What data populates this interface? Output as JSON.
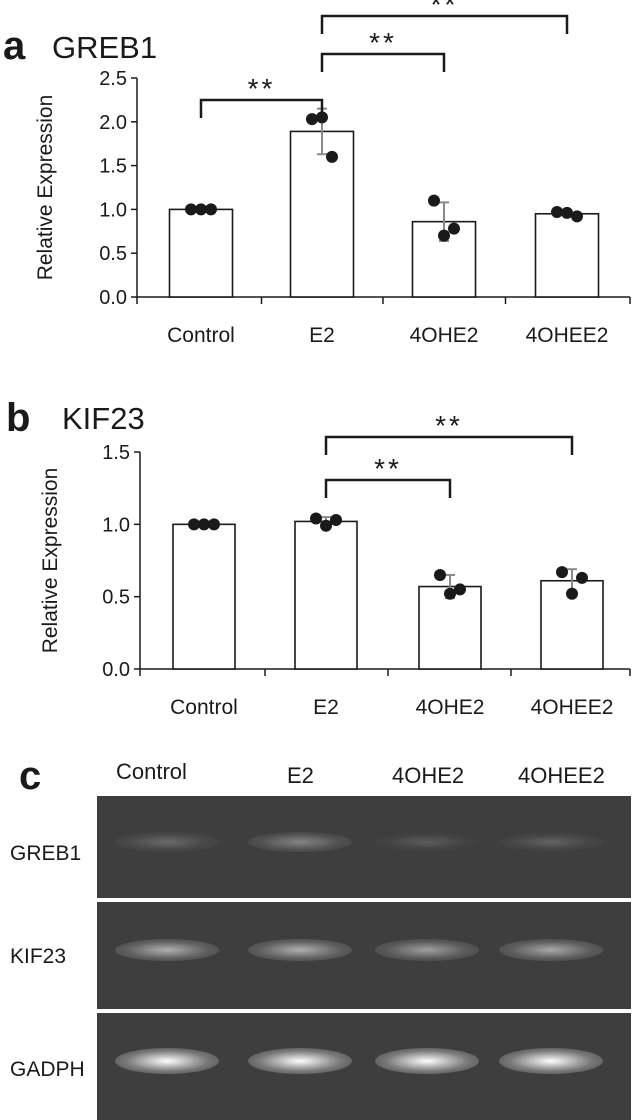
{
  "panels": [
    {
      "letter": "a",
      "title": "GREB1"
    },
    {
      "letter": "b",
      "title": "KIF23"
    },
    {
      "letter": "c"
    }
  ],
  "chart_data": [
    {
      "type": "bar",
      "title": "GREB1",
      "ylabel": "Relative Expression",
      "categories": [
        "Control",
        "E2",
        "4OHE2",
        "4OHEE2"
      ],
      "values": [
        1.0,
        1.89,
        0.86,
        0.95
      ],
      "errors": [
        0.0,
        0.26,
        0.22,
        0.02
      ],
      "points": [
        [
          1.0,
          1.0,
          1.0
        ],
        [
          2.03,
          2.05,
          1.6
        ],
        [
          1.1,
          0.7,
          0.78
        ],
        [
          0.97,
          0.96,
          0.92
        ]
      ],
      "ylim": [
        0,
        2.5
      ],
      "yticks": [
        "0.0",
        "0.5",
        "1.0",
        "1.5",
        "2.0",
        "2.5"
      ],
      "significance": [
        {
          "from": 0,
          "to": 1,
          "label": "**"
        },
        {
          "from": 1,
          "to": 2,
          "label": "**"
        },
        {
          "from": 1,
          "to": 3,
          "label": "**"
        }
      ]
    },
    {
      "type": "bar",
      "title": "KIF23",
      "ylabel": "Relative Expression",
      "categories": [
        "Control",
        "E2",
        "4OHE2",
        "4OHEE2"
      ],
      "values": [
        1.0,
        1.02,
        0.57,
        0.61
      ],
      "errors": [
        0.0,
        0.03,
        0.08,
        0.08
      ],
      "points": [
        [
          1.0,
          1.0,
          1.0
        ],
        [
          1.04,
          0.99,
          1.03
        ],
        [
          0.65,
          0.52,
          0.55
        ],
        [
          0.67,
          0.52,
          0.63
        ]
      ],
      "ylim": [
        0,
        1.5
      ],
      "yticks": [
        "0.0",
        "0.5",
        "1.0",
        "1.5"
      ],
      "significance": [
        {
          "from": 1,
          "to": 2,
          "label": "**"
        },
        {
          "from": 1,
          "to": 3,
          "label": "**"
        }
      ]
    }
  ],
  "gel": {
    "lanes": [
      "Control",
      "E2",
      "4OHE2",
      "4OHEE2"
    ],
    "rows": [
      {
        "label": "GREB1",
        "intensity": [
          0.15,
          0.3,
          0.07,
          0.11
        ]
      },
      {
        "label": "KIF23",
        "intensity": [
          0.55,
          0.55,
          0.45,
          0.5
        ]
      },
      {
        "label": "GADPH",
        "intensity": [
          1.0,
          1.0,
          1.0,
          1.0
        ]
      }
    ]
  }
}
